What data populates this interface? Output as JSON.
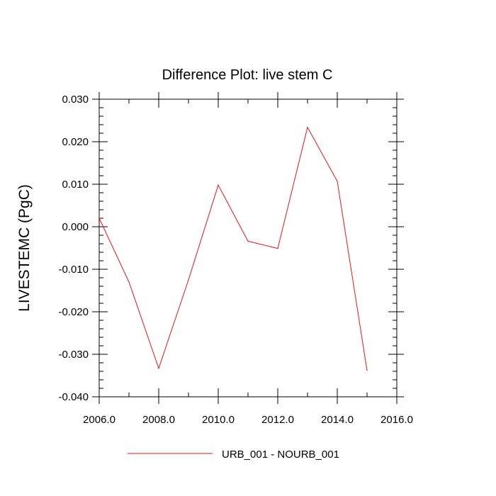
{
  "chart_data": {
    "type": "line",
    "title": "Difference Plot: live stem C",
    "xlabel": "",
    "ylabel": "LIVESTEMC  (PgC)",
    "xlim": [
      2006.0,
      2016.0
    ],
    "ylim": [
      -0.04,
      0.03
    ],
    "x_ticks": [
      "2006.0",
      "2008.0",
      "2010.0",
      "2012.0",
      "2014.0",
      "2016.0"
    ],
    "y_ticks": [
      "0.030",
      "0.020",
      "0.010",
      "0.000",
      "-0.010",
      "-0.020",
      "-0.030",
      "-0.040"
    ],
    "grid": false,
    "legend_position": "bottom",
    "series": [
      {
        "name": "URB_001 - NOURB_001",
        "color": "#e8141e",
        "x": [
          2006,
          2007,
          2008,
          2009,
          2010,
          2011,
          2012,
          2013,
          2014,
          2015
        ],
        "values": [
          0.002,
          -0.013,
          -0.0333,
          -0.0125,
          0.0098,
          -0.0034,
          -0.0051,
          0.0234,
          0.0107,
          -0.0338
        ]
      }
    ]
  }
}
